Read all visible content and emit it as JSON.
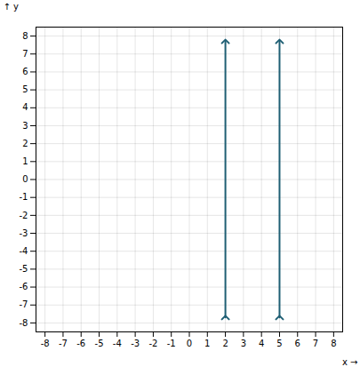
{
  "chart_data": {
    "type": "line",
    "xlabel": "x",
    "ylabel": "y",
    "xlim": [
      -8.5,
      8.5
    ],
    "ylim": [
      -8.5,
      8.5
    ],
    "xticks": [
      -8,
      -7,
      -6,
      -5,
      -4,
      -3,
      -2,
      -1,
      0,
      1,
      2,
      3,
      4,
      5,
      6,
      7,
      8
    ],
    "yticks": [
      -8,
      -7,
      -6,
      -5,
      -4,
      -3,
      -2,
      -1,
      0,
      1,
      2,
      3,
      4,
      5,
      6,
      7,
      8
    ],
    "grid": true,
    "color": "#1f5f74",
    "marker": "arrow",
    "series": [
      {
        "x": [
          2,
          2
        ],
        "values": [
          -7.7,
          7.7
        ]
      },
      {
        "x": [
          5,
          5
        ],
        "values": [
          -7.7,
          7.7
        ]
      }
    ]
  }
}
